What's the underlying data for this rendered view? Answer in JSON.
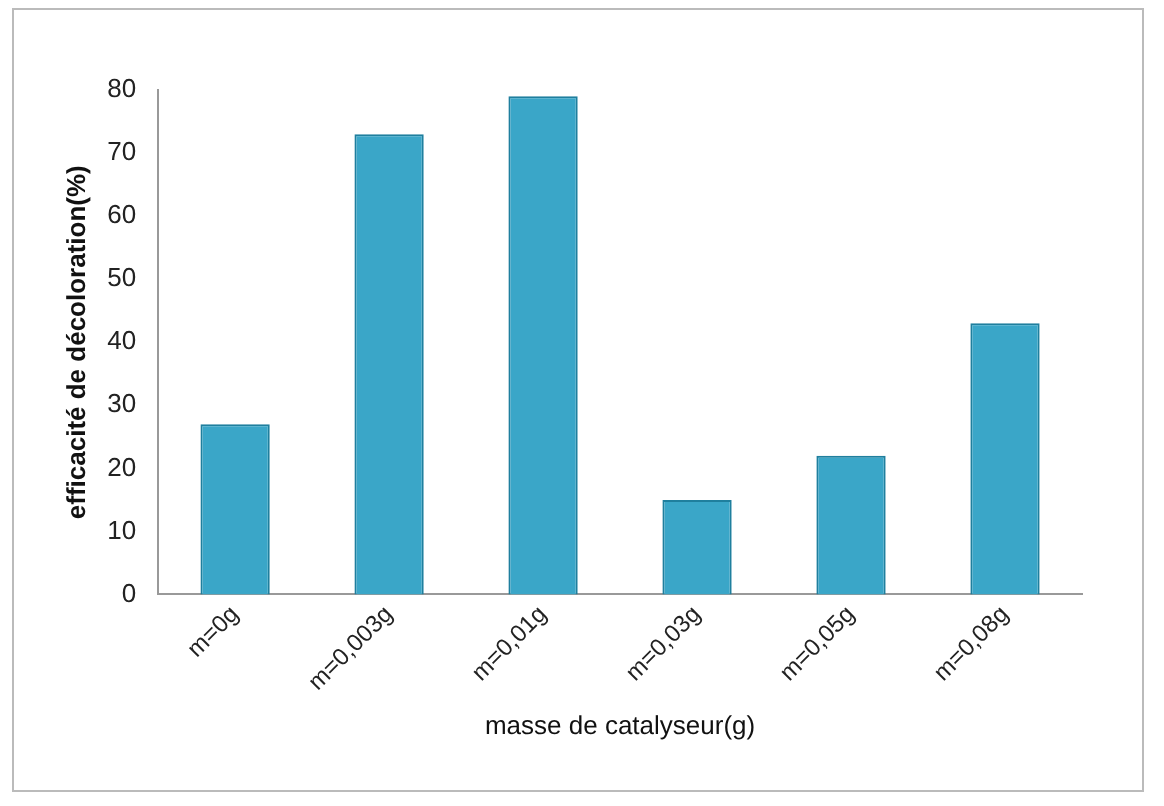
{
  "chart_data": {
    "type": "bar",
    "ylabel": "efficacité de décoloration(%)",
    "xlabel": "masse de catalyseur(g)",
    "categories": [
      "m=0g",
      "m=0,003g",
      "m=0,01g",
      "m=0,03g",
      "m=0,05g",
      "m=0,08g"
    ],
    "values": [
      27,
      73,
      79,
      15,
      22,
      43
    ],
    "color": "#3aa6c8",
    "ylim": [
      0,
      80
    ],
    "yticks": [
      0,
      10,
      20,
      30,
      40,
      50,
      60,
      70,
      80
    ],
    "grid": false,
    "legend": false
  }
}
